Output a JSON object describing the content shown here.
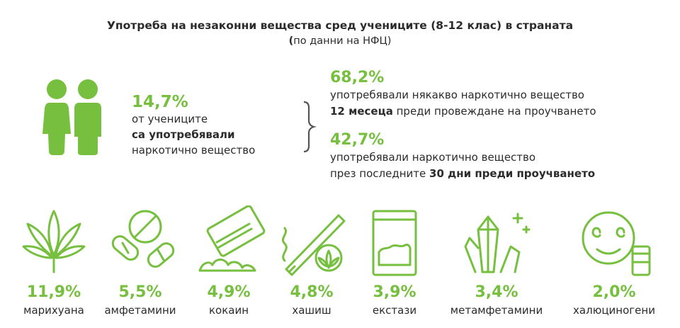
{
  "header": {
    "title": "Употреба на незаконни вещества сред учениците (8-12 клас) в страната",
    "subtitle": "по данни на НФЦ)",
    "subtitle_paren": "("
  },
  "main_stat": {
    "value": "14,7%",
    "line1": "от учениците",
    "line2": "са употребявали",
    "line3": "наркотично вещество"
  },
  "stats": [
    {
      "value": "68,2%",
      "line1": "употребявали някакво наркотично вещество",
      "line2_bold": "12 месеца",
      "line2_rest": " преди провеждане на проучването"
    },
    {
      "value": "42,7%",
      "line1": "употребявали наркотично вещество",
      "line2_rest": "през последните ",
      "line2_bold": "30 дни преди проучването"
    }
  ],
  "colors": {
    "accent": "#76bf3f",
    "text": "#2b2b2b"
  },
  "chart_data": {
    "type": "table",
    "categories": [
      "марихуана",
      "амфетамини",
      "кокаин",
      "хашиш",
      "екстази",
      "метамфетамини",
      "халюциногени"
    ],
    "values": [
      11.9,
      5.5,
      4.9,
      4.8,
      3.9,
      3.4,
      2.0
    ],
    "labels": [
      "11,9%",
      "5,5%",
      "4,9%",
      "4,8%",
      "3,9%",
      "3,4%",
      "2,0%"
    ],
    "icons": [
      "cannabis-leaf-icon",
      "pills-icon",
      "cocaine-card-icon",
      "joint-icon",
      "ecstasy-bag-icon",
      "crystals-icon",
      "smiley-face-icon"
    ]
  }
}
